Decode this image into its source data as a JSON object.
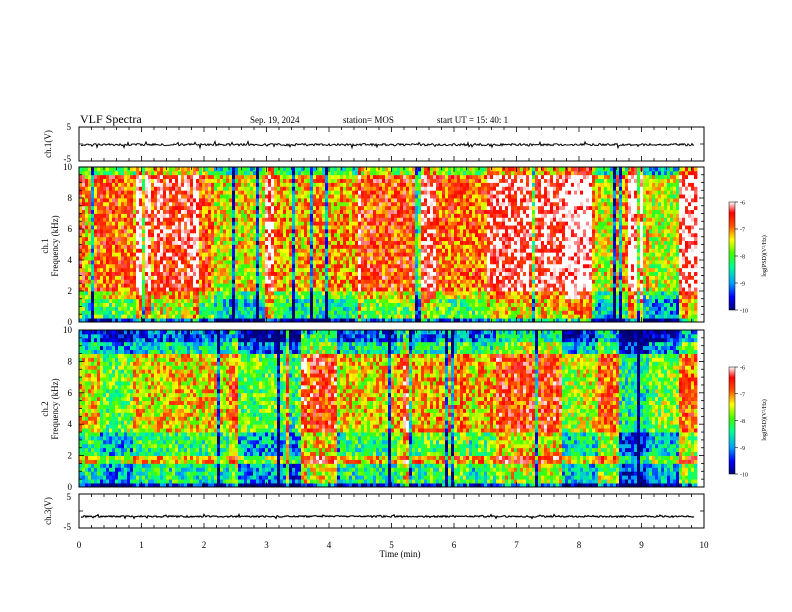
{
  "header": {
    "title": "VLF Spectra",
    "date": "Sep. 19, 2024",
    "station": "station= MOS",
    "start": "start  UT  =   15: 40: 1"
  },
  "chart_data": [
    {
      "type": "line",
      "ylabel": "ch.1(V)",
      "ylim": [
        -5,
        5
      ],
      "ytick_labels": [
        "5",
        "-5"
      ],
      "trace_level": -0.2
    },
    {
      "type": "heatmap",
      "ylabel_top": "ch.1",
      "ylabel_bottom": "Frequency (kHz)",
      "ylim": [
        0,
        10
      ],
      "yticks": [
        0,
        2,
        4,
        6,
        8,
        10
      ],
      "ytick_labels": [
        "0",
        "2",
        "4",
        "6",
        "8",
        "10"
      ],
      "colorbar": {
        "label": "log(PSD)(V²/Hz)",
        "range": [
          -10,
          -6
        ],
        "tick_labels": [
          "-6",
          "-7",
          "-8",
          "-9",
          "-10"
        ]
      }
    },
    {
      "type": "heatmap",
      "ylabel_top": "ch.2",
      "ylabel_bottom": "Frequency (kHz)",
      "ylim": [
        0,
        10
      ],
      "yticks": [
        0,
        2,
        4,
        6,
        8,
        10
      ],
      "ytick_labels": [
        "0",
        "2",
        "4",
        "6",
        "8",
        "10"
      ],
      "colorbar": {
        "label": "log(PSD)(V²/Hz)",
        "range": [
          -10,
          -6
        ],
        "tick_labels": [
          "-6",
          "-7",
          "-8",
          "-9",
          "-10"
        ]
      }
    },
    {
      "type": "line",
      "ylabel": "ch.3(V)",
      "ylim": [
        -5,
        5
      ],
      "ytick_labels": [
        "5",
        "-5"
      ],
      "trace_level": -1.6
    }
  ],
  "x_axis": {
    "label": "Time (min)",
    "range": [
      0,
      10
    ],
    "ticks": [
      0,
      1,
      2,
      3,
      4,
      5,
      6,
      7,
      8,
      9,
      10
    ],
    "tick_labels": [
      "0",
      "1",
      "2",
      "3",
      "4",
      "5",
      "6",
      "7",
      "8",
      "9",
      "10"
    ],
    "data_end": 9.85
  },
  "colors": {
    "colormap": [
      "#00007a",
      "#0000ff",
      "#00a0ff",
      "#00ff90",
      "#40ff00",
      "#ffff00",
      "#ff5000",
      "#ff0000",
      "#ffffff"
    ]
  }
}
